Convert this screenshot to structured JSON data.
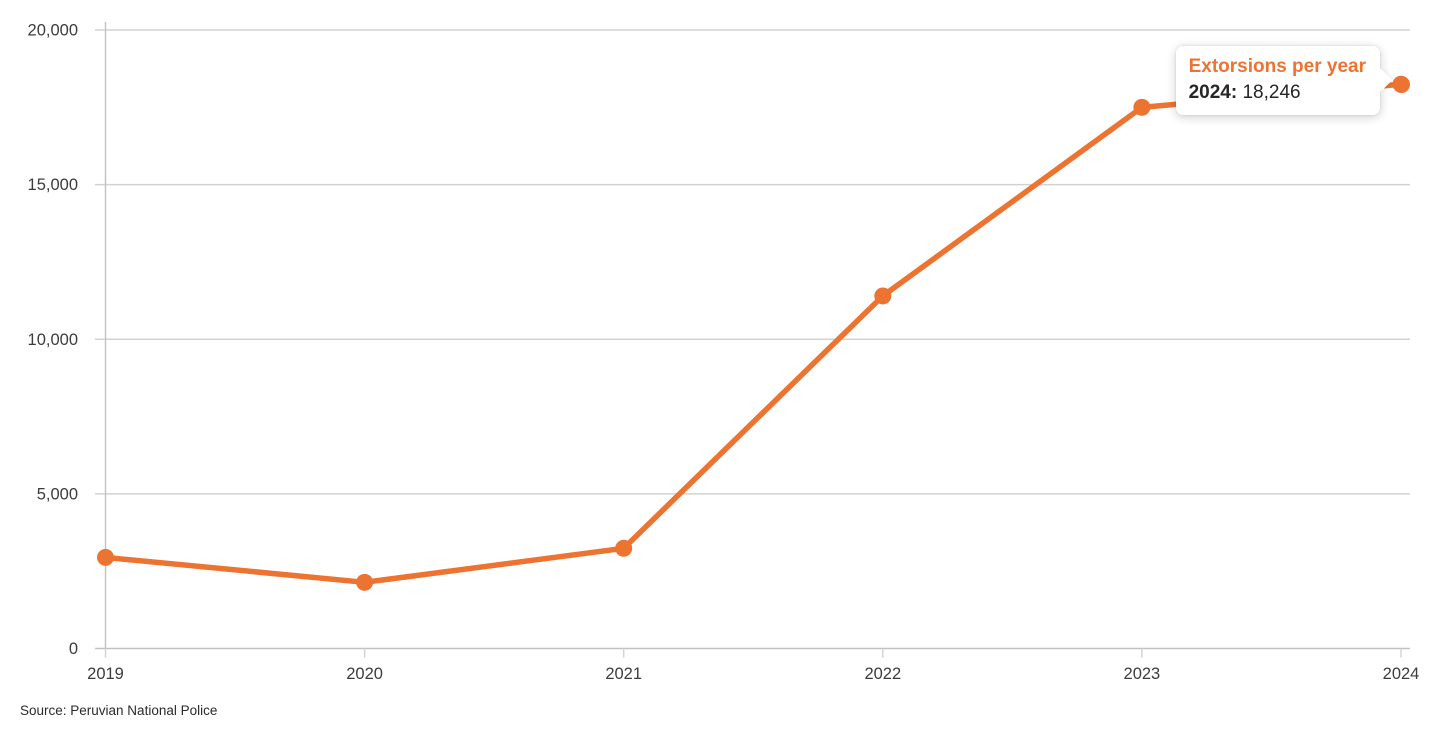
{
  "chart_data": {
    "type": "line",
    "title": "Extorsions per year",
    "series_name": "Extorsions per year",
    "x": [
      "2019",
      "2020",
      "2021",
      "2022",
      "2023",
      "2024"
    ],
    "values": [
      2945,
      2140,
      3240,
      11400,
      17500,
      18246
    ],
    "ylim": [
      0,
      20000
    ],
    "yticks": [
      0,
      5000,
      10000,
      15000,
      20000
    ],
    "ytick_labels": [
      "0",
      "5,000",
      "10,000",
      "15,000",
      "20,000"
    ],
    "xlabel": "",
    "ylabel": "",
    "grid": "horizontal",
    "legend": "none (tooltip shows series name)",
    "line_color": "#ED7331",
    "marker": "circle"
  },
  "tooltip": {
    "title": "Extorsions per year",
    "year_label": "2024:",
    "value_label": "18,246",
    "highlight_year": "2024"
  },
  "footer": {
    "source": "Source: Peruvian National Police"
  },
  "colors": {
    "accent": "#ED7331",
    "gridline": "#d2d2d2",
    "axis": "#c2c2c2",
    "tick_text": "#3c3c3c",
    "tooltip_text": "#262626",
    "background": "#ffffff"
  }
}
